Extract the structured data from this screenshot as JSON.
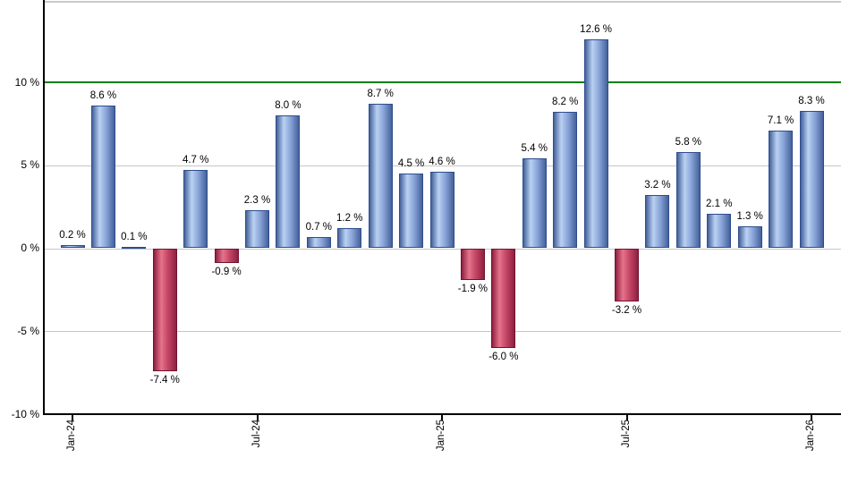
{
  "chart_data": {
    "type": "bar",
    "title": "",
    "xlabel": "",
    "ylabel": "",
    "unit": "%",
    "ylim": [
      -10,
      14.9
    ],
    "grid": true,
    "legend": "none",
    "bars": [
      {
        "value": 0.2,
        "label": "0.2 %"
      },
      {
        "value": 8.6,
        "label": "8.6 %"
      },
      {
        "value": 0.1,
        "label": "0.1 %"
      },
      {
        "value": -7.4,
        "label": "-7.4 %"
      },
      {
        "value": 4.7,
        "label": "4.7 %"
      },
      {
        "value": -0.9,
        "label": "-0.9 %"
      },
      {
        "value": 2.3,
        "label": "2.3 %"
      },
      {
        "value": 8.0,
        "label": "8.0 %"
      },
      {
        "value": 0.7,
        "label": "0.7 %"
      },
      {
        "value": 1.2,
        "label": "1.2 %"
      },
      {
        "value": 8.7,
        "label": "8.7 %"
      },
      {
        "value": 4.5,
        "label": "4.5 %"
      },
      {
        "value": 4.6,
        "label": "4.6 %"
      },
      {
        "value": -1.9,
        "label": "-1.9 %"
      },
      {
        "value": -6.0,
        "label": "-6.0 %"
      },
      {
        "value": 5.4,
        "label": "5.4 %"
      },
      {
        "value": 8.2,
        "label": "8.2 %"
      },
      {
        "value": 12.6,
        "label": "12.6 %"
      },
      {
        "value": -3.2,
        "label": "-3.2 %"
      },
      {
        "value": 3.2,
        "label": "3.2 %"
      },
      {
        "value": 5.8,
        "label": "5.8 %"
      },
      {
        "value": 2.1,
        "label": "2.1 %"
      },
      {
        "value": 1.3,
        "label": "1.3 %"
      },
      {
        "value": 7.1,
        "label": "7.1 %"
      },
      {
        "value": 8.3,
        "label": "8.3 %"
      }
    ],
    "x_ticks": [
      {
        "bar_index": 0,
        "label": "Jan-24"
      },
      {
        "bar_index": 6,
        "label": "Jul-24"
      },
      {
        "bar_index": 12,
        "label": "Jan-25"
      },
      {
        "bar_index": 18,
        "label": "Jul-25"
      },
      {
        "bar_index": 24,
        "label": "Jan-26"
      }
    ],
    "y_ticks": [
      {
        "value": 10,
        "label": "10 %"
      },
      {
        "value": 5,
        "label": "5 %"
      },
      {
        "value": 0,
        "label": "0 %"
      },
      {
        "value": -5,
        "label": "-5 %"
      },
      {
        "value": -10,
        "label": "-10 %"
      }
    ],
    "gridline_values": [
      5,
      0,
      -5
    ],
    "reference_line": {
      "value": 10,
      "color": "#008000"
    },
    "colors": {
      "positive_bar_dark": "#44619b",
      "positive_bar_light": "#b9d1f2",
      "positive_bar_edge": "#2e4d8d",
      "negative_bar_dark": "#8f1f40",
      "negative_bar_light": "#e4748b",
      "negative_bar_edge": "#70132f",
      "grid": "#c6c6c6",
      "axis": "#000000",
      "top_border": "#c9c9c9",
      "label_text": "#000000"
    }
  }
}
